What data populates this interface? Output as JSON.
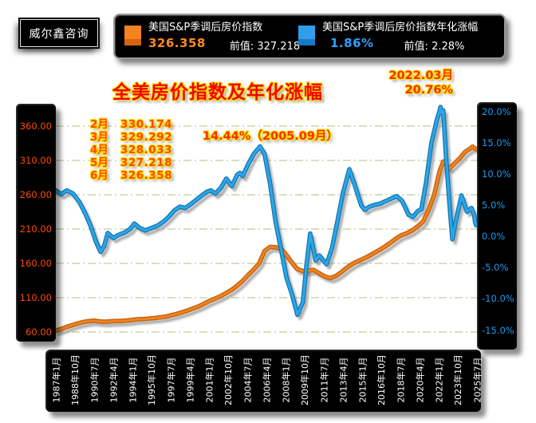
{
  "logo": {
    "text": "威尔鑫咨询"
  },
  "legend": {
    "series1": {
      "label": "美国S&P季调后房价指数",
      "value": "326.358",
      "prev_label": "前值:",
      "prev_value": "327.218",
      "swatch_color": "#F5831F",
      "value_color": "#FF8C1E"
    },
    "series2": {
      "label": "美国S&P季调后房价指数年化涨幅",
      "value": "1.86%",
      "prev_label": "前值:",
      "prev_value": "2.28%",
      "swatch_color": "#2F9FEA",
      "value_color": "#2FA0FF"
    }
  },
  "title": "全美房价指数及年化涨幅",
  "annotations": {
    "peak2022_line1": "2022.03月",
    "peak2022_line2": "20.76%",
    "peak2005": "14.44%（2005.09月）",
    "monthly_values": [
      {
        "month": "2月",
        "value": "330.174"
      },
      {
        "month": "3月",
        "value": "329.292"
      },
      {
        "month": "4月",
        "value": "328.033"
      },
      {
        "month": "5月",
        "value": "327.218"
      },
      {
        "month": "6月",
        "value": "326.358"
      }
    ]
  },
  "chart_data": {
    "type": "line",
    "title": "全美房价指数及年化涨幅",
    "grid": {
      "color": "#C9C897",
      "style": "dash-dot",
      "levels_follow": "left_axis"
    },
    "x_axis": {
      "range": [
        "1987-01",
        "2025-07"
      ],
      "labels": [
        "1987年1月",
        "1988年10月",
        "1990年7月",
        "1992年4月",
        "1994年1月",
        "1995年10月",
        "1997年7月",
        "1999年4月",
        "2001年1月",
        "2002年10月",
        "2004年7月",
        "2006年4月",
        "2008年1月",
        "2009年10月",
        "2011年7月",
        "2013年4月",
        "2015年1月",
        "2016年10月",
        "2018年7月",
        "2020年4月",
        "2022年1月",
        "2023年10月",
        "2025年7月"
      ]
    },
    "left_axis": {
      "label_color": "#FF4A00",
      "ticks": [
        "360.00",
        "310.00",
        "260.00",
        "210.00",
        "160.00",
        "110.00",
        "60.00"
      ],
      "tick_values": [
        360,
        310,
        260,
        210,
        160,
        110,
        60
      ],
      "range": [
        60,
        360
      ]
    },
    "right_axis": {
      "label_color": "#1E9AF0",
      "ticks": [
        "20.0%",
        "15.0%",
        "10.0%",
        "5.0%",
        "0.0%",
        "-5.0%",
        "-10.0%",
        "-15.0%"
      ],
      "tick_values": [
        20,
        15,
        10,
        5,
        0,
        -5,
        -10,
        -15
      ],
      "range": [
        -15,
        20
      ]
    },
    "series": [
      {
        "name": "美国S&P季调后房价指数",
        "axis": "left",
        "color": "#EF8121",
        "edge_color": "#BC5E08",
        "last_value": 326.358,
        "prev_value": 327.218,
        "points": [
          [
            "1987-01",
            62.0
          ],
          [
            "1987-07",
            64.5
          ],
          [
            "1988-01",
            67.5
          ],
          [
            "1988-07",
            70.0
          ],
          [
            "1989-01",
            72.5
          ],
          [
            "1989-07",
            74.5
          ],
          [
            "1990-01",
            75.8
          ],
          [
            "1990-07",
            76.5
          ],
          [
            "1991-02",
            75.2
          ],
          [
            "1991-08",
            75.0
          ],
          [
            "1992-02",
            75.6
          ],
          [
            "1992-08",
            76.0
          ],
          [
            "1993-02",
            76.2
          ],
          [
            "1993-08",
            76.9
          ],
          [
            "1994-02",
            77.8
          ],
          [
            "1994-08",
            78.7
          ],
          [
            "1995-02",
            79.0
          ],
          [
            "1995-08",
            79.8
          ],
          [
            "1996-02",
            80.5
          ],
          [
            "1996-08",
            81.5
          ],
          [
            "1997-02",
            82.5
          ],
          [
            "1997-08",
            84.5
          ],
          [
            "1998-02",
            86.5
          ],
          [
            "1998-08",
            89.0
          ],
          [
            "1999-02",
            91.5
          ],
          [
            "1999-08",
            94.5
          ],
          [
            "2000-02",
            97.5
          ],
          [
            "2000-08",
            101.5
          ],
          [
            "2001-02",
            105.5
          ],
          [
            "2001-08",
            109.0
          ],
          [
            "2002-02",
            112.5
          ],
          [
            "2002-08",
            117.0
          ],
          [
            "2003-02",
            121.5
          ],
          [
            "2003-08",
            127.5
          ],
          [
            "2004-02",
            134.5
          ],
          [
            "2004-08",
            143.0
          ],
          [
            "2005-02",
            151.0
          ],
          [
            "2005-08",
            160.0
          ],
          [
            "2006-02",
            178.0
          ],
          [
            "2006-08",
            184.0
          ],
          [
            "2007-02",
            183.5
          ],
          [
            "2007-08",
            181.5
          ],
          [
            "2008-02",
            172.0
          ],
          [
            "2008-08",
            161.0
          ],
          [
            "2009-02",
            151.5
          ],
          [
            "2009-08",
            149.0
          ],
          [
            "2010-02",
            149.5
          ],
          [
            "2010-08",
            150.5
          ],
          [
            "2011-02",
            145.5
          ],
          [
            "2011-08",
            141.0
          ],
          [
            "2012-02",
            138.5
          ],
          [
            "2012-08",
            141.5
          ],
          [
            "2013-02",
            147.0
          ],
          [
            "2013-08",
            153.5
          ],
          [
            "2014-02",
            159.0
          ],
          [
            "2014-08",
            163.0
          ],
          [
            "2015-02",
            166.5
          ],
          [
            "2015-08",
            170.5
          ],
          [
            "2016-02",
            175.0
          ],
          [
            "2016-08",
            179.5
          ],
          [
            "2017-02",
            184.5
          ],
          [
            "2017-08",
            190.0
          ],
          [
            "2018-02",
            196.0
          ],
          [
            "2018-08",
            201.0
          ],
          [
            "2019-02",
            204.0
          ],
          [
            "2019-08",
            208.0
          ],
          [
            "2020-02",
            214.0
          ],
          [
            "2020-08",
            221.0
          ],
          [
            "2021-02",
            238.0
          ],
          [
            "2021-08",
            260.0
          ],
          [
            "2022-02",
            294.0
          ],
          [
            "2022-06",
            308.5
          ],
          [
            "2022-10",
            302.0
          ],
          [
            "2023-01",
            298.5
          ],
          [
            "2023-06",
            305.0
          ],
          [
            "2023-12",
            313.0
          ],
          [
            "2024-06",
            322.5
          ],
          [
            "2024-12",
            327.5
          ],
          [
            "2025-02",
            330.174
          ],
          [
            "2025-03",
            329.292
          ],
          [
            "2025-04",
            328.033
          ],
          [
            "2025-05",
            327.218
          ],
          [
            "2025-06",
            326.358
          ]
        ]
      },
      {
        "name": "美国S&P季调后房价指数年化涨幅",
        "axis": "right",
        "color": "#2BA6E8",
        "edge_color": "#1272AE",
        "last_value": 1.86,
        "prev_value": 2.28,
        "peak_annotations": [
          {
            "date": "2005-09",
            "value": 14.44
          },
          {
            "date": "2022-03",
            "value": 20.76
          }
        ],
        "points": [
          [
            "1987-01",
            7.4
          ],
          [
            "1987-07",
            6.8
          ],
          [
            "1988-01",
            7.4
          ],
          [
            "1988-08",
            6.9
          ],
          [
            "1989-03",
            5.5
          ],
          [
            "1989-09",
            3.8
          ],
          [
            "1990-03",
            1.8
          ],
          [
            "1990-09",
            -0.8
          ],
          [
            "1991-02",
            -2.4
          ],
          [
            "1991-06",
            -1.5
          ],
          [
            "1991-10",
            0.6
          ],
          [
            "1992-04",
            -0.2
          ],
          [
            "1992-10",
            0.3
          ],
          [
            "1993-05",
            0.7
          ],
          [
            "1993-11",
            1.3
          ],
          [
            "1994-03",
            2.1
          ],
          [
            "1994-09",
            1.4
          ],
          [
            "1995-03",
            1.0
          ],
          [
            "1995-10",
            1.4
          ],
          [
            "1996-05",
            1.8
          ],
          [
            "1996-11",
            2.4
          ],
          [
            "1997-05",
            3.2
          ],
          [
            "1997-11",
            4.2
          ],
          [
            "1998-05",
            4.8
          ],
          [
            "1998-11",
            4.6
          ],
          [
            "1999-05",
            5.2
          ],
          [
            "1999-11",
            5.9
          ],
          [
            "2000-05",
            6.6
          ],
          [
            "2000-11",
            7.2
          ],
          [
            "2001-03",
            7.4
          ],
          [
            "2001-08",
            6.9
          ],
          [
            "2002-02",
            7.8
          ],
          [
            "2002-08",
            9.3
          ],
          [
            "2003-02",
            8.1
          ],
          [
            "2003-08",
            9.9
          ],
          [
            "2003-11",
            10.2
          ],
          [
            "2004-02",
            9.7
          ],
          [
            "2004-08",
            11.6
          ],
          [
            "2005-02",
            13.2
          ],
          [
            "2005-09",
            14.44
          ],
          [
            "2006-02",
            13.2
          ],
          [
            "2006-08",
            8.5
          ],
          [
            "2007-02",
            2.5
          ],
          [
            "2007-08",
            -2.0
          ],
          [
            "2008-02",
            -6.5
          ],
          [
            "2008-08",
            -9.2
          ],
          [
            "2009-02",
            -12.5
          ],
          [
            "2009-08",
            -10.5
          ],
          [
            "2009-12",
            -4.5
          ],
          [
            "2010-04",
            0.5
          ],
          [
            "2010-10",
            -3.8
          ],
          [
            "2011-02",
            -3.0
          ],
          [
            "2011-10",
            -4.4
          ],
          [
            "2012-04",
            -1.8
          ],
          [
            "2012-10",
            2.5
          ],
          [
            "2013-04",
            7.0
          ],
          [
            "2013-11",
            10.8
          ],
          [
            "2014-05",
            8.2
          ],
          [
            "2014-12",
            5.0
          ],
          [
            "2015-04",
            4.3
          ],
          [
            "2015-09",
            4.8
          ],
          [
            "2016-03",
            5.1
          ],
          [
            "2016-09",
            5.3
          ],
          [
            "2017-03",
            5.7
          ],
          [
            "2017-09",
            6.1
          ],
          [
            "2018-03",
            6.5
          ],
          [
            "2018-09",
            5.7
          ],
          [
            "2019-04",
            3.5
          ],
          [
            "2019-09",
            3.2
          ],
          [
            "2020-02",
            4.1
          ],
          [
            "2020-06",
            4.4
          ],
          [
            "2020-11",
            8.5
          ],
          [
            "2021-05",
            15.0
          ],
          [
            "2021-11",
            18.7
          ],
          [
            "2022-02",
            20.1
          ],
          [
            "2022-03",
            20.76
          ],
          [
            "2022-04",
            19.8
          ],
          [
            "2022-06",
            20.2
          ],
          [
            "2022-09",
            13.0
          ],
          [
            "2023-01",
            5.0
          ],
          [
            "2023-04",
            -0.4
          ],
          [
            "2023-08",
            2.6
          ],
          [
            "2024-02",
            6.6
          ],
          [
            "2024-08",
            4.0
          ],
          [
            "2025-01",
            4.6
          ],
          [
            "2025-04",
            3.4
          ],
          [
            "2025-05",
            2.28
          ],
          [
            "2025-06",
            1.86
          ]
        ]
      }
    ]
  }
}
